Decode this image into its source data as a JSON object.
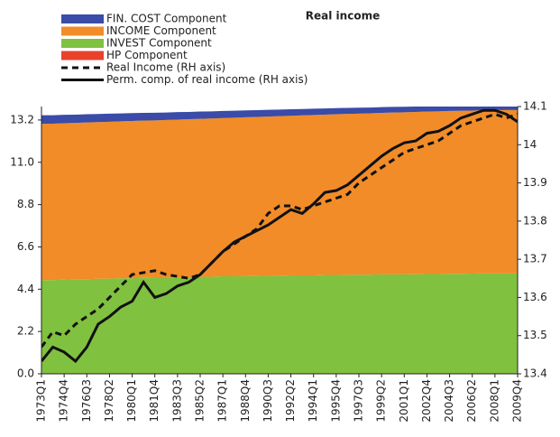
{
  "chart_data": {
    "type": "area",
    "title": "Real income",
    "categories": [
      "1973Q1",
      null,
      "1974Q4",
      null,
      "1976Q3",
      null,
      "1978Q2",
      null,
      "1980Q1",
      null,
      "1981Q4",
      null,
      "1983Q3",
      null,
      "1985Q2",
      null,
      "1987Q1",
      null,
      "1988Q4",
      null,
      "1990Q3",
      null,
      "1992Q2",
      null,
      "1994Q1",
      null,
      "1995Q4",
      null,
      "1997Q3",
      null,
      "1999Q2",
      null,
      "2001Q1",
      null,
      "2002Q4",
      null,
      "2004Q3",
      null,
      "2006Q2",
      null,
      "2008Q1",
      null,
      "2009Q4"
    ],
    "ylim": [
      0,
      13.9
    ],
    "yticks": [
      {
        "value": 0,
        "label": "0.0"
      },
      2.2,
      4.4,
      6.6,
      8.8,
      {
        "value": 11,
        "label": "11.0"
      },
      13.2
    ],
    "y2lim": [
      13.4,
      14.1
    ],
    "y2ticks": [
      13.4,
      13.5,
      13.6,
      13.7,
      13.8,
      13.9,
      14,
      14.1
    ],
    "series": [
      {
        "name": "FIN. COST Component",
        "color": "#3a4ba8",
        "values": [
          0.45,
          0.44,
          0.44,
          0.43,
          0.43,
          0.42,
          0.42,
          0.41,
          0.41,
          0.4,
          0.4,
          0.39,
          0.39,
          0.38,
          0.38,
          0.37,
          0.37,
          0.36,
          0.36,
          0.35,
          0.35,
          0.34,
          0.34,
          0.33,
          0.33,
          0.32,
          0.32,
          0.31,
          0.31,
          0.3,
          0.3,
          0.29,
          0.29,
          0.28,
          0.28,
          0.27,
          0.27,
          0.26,
          0.26,
          0.25,
          0.25,
          0.24,
          0.24
        ]
      },
      {
        "name": "INCOME Component",
        "color": "#f28c28",
        "values": [
          8.13,
          8.14,
          8.13,
          8.13,
          8.15,
          8.15,
          8.16,
          8.16,
          8.18,
          8.18,
          8.18,
          8.2,
          8.2,
          8.22,
          8.22,
          8.23,
          8.23,
          8.25,
          8.26,
          8.27,
          8.28,
          8.3,
          8.3,
          8.32,
          8.34,
          8.34,
          8.36,
          8.37,
          8.38,
          8.39,
          8.4,
          8.42,
          8.43,
          8.44,
          8.45,
          8.46,
          8.47,
          8.48,
          8.48,
          8.49,
          8.5,
          8.5,
          8.5
        ]
      },
      {
        "name": "INVEST Component",
        "color": "#80c140",
        "values": [
          4.85,
          4.85,
          4.88,
          4.9,
          4.9,
          4.92,
          4.93,
          4.95,
          4.95,
          4.97,
          4.98,
          4.98,
          5.0,
          5.0,
          5.02,
          5.03,
          5.05,
          5.05,
          5.06,
          5.07,
          5.08,
          5.08,
          5.1,
          5.1,
          5.1,
          5.12,
          5.12,
          5.13,
          5.13,
          5.14,
          5.15,
          5.15,
          5.15,
          5.16,
          5.17,
          5.17,
          5.18,
          5.18,
          5.19,
          5.2,
          5.2,
          5.2,
          5.2
        ]
      },
      {
        "name": "HP Component",
        "color": "#e8412c",
        "values": [
          0.02,
          0.02,
          0.02,
          0.02,
          0.02,
          0.02,
          0.02,
          0.02,
          0.02,
          0.02,
          0.02,
          0.02,
          0.02,
          0.02,
          0.02,
          0.02,
          0.02,
          0.02,
          0.02,
          0.02,
          0.02,
          0.02,
          0.02,
          0.02,
          0.02,
          0.02,
          0.02,
          0.02,
          0.02,
          0.02,
          0.02,
          0.02,
          0.02,
          0.02,
          0.02,
          0.02,
          0.02,
          0.02,
          0.02,
          0.02,
          0.02,
          0.02,
          0.02
        ]
      },
      {
        "name": "Real Income (RH axis)",
        "type": "line",
        "axis": "y2",
        "dashed": true,
        "color": "#111111",
        "values": [
          13.47,
          13.51,
          13.5,
          13.53,
          13.55,
          13.57,
          13.6,
          13.63,
          13.66,
          13.665,
          13.67,
          13.66,
          13.655,
          13.65,
          13.66,
          13.69,
          13.72,
          13.74,
          13.76,
          13.78,
          13.82,
          13.84,
          13.84,
          13.83,
          13.84,
          13.85,
          13.86,
          13.87,
          13.9,
          13.92,
          13.94,
          13.96,
          13.98,
          13.99,
          14.0,
          14.01,
          14.03,
          14.05,
          14.06,
          14.07,
          14.08,
          14.07,
          14.08
        ]
      },
      {
        "name": "Perm. comp. of real income (RH axis)",
        "type": "line",
        "axis": "y2",
        "dashed": false,
        "color": "#111111",
        "values": [
          13.433,
          13.47,
          13.457,
          13.433,
          13.47,
          13.53,
          13.55,
          13.575,
          13.59,
          13.64,
          13.6,
          13.61,
          13.63,
          13.64,
          13.66,
          13.69,
          13.72,
          13.745,
          13.76,
          13.775,
          13.79,
          13.81,
          13.83,
          13.82,
          13.845,
          13.875,
          13.88,
          13.895,
          13.92,
          13.945,
          13.97,
          13.99,
          14.005,
          14.01,
          14.03,
          14.035,
          14.05,
          14.07,
          14.08,
          14.09,
          14.09,
          14.08,
          14.06
        ]
      }
    ]
  }
}
